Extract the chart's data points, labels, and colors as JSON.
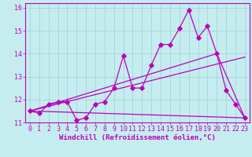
{
  "background_color": "#c5edef",
  "grid_color": "#a8d8dc",
  "line_color": "#bb00bb",
  "xlim": [
    -0.5,
    23.5
  ],
  "ylim": [
    11,
    16.2
  ],
  "xlabel": "Windchill (Refroidissement éolien,°C)",
  "xlabel_fontsize": 6.5,
  "xtick_labels": [
    "0",
    "1",
    "2",
    "3",
    "4",
    "5",
    "6",
    "7",
    "8",
    "9",
    "10",
    "11",
    "12",
    "13",
    "14",
    "15",
    "16",
    "17",
    "18",
    "19",
    "20",
    "21",
    "22",
    "23"
  ],
  "xtick_vals": [
    0,
    1,
    2,
    3,
    4,
    5,
    6,
    7,
    8,
    9,
    10,
    11,
    12,
    13,
    14,
    15,
    16,
    17,
    18,
    19,
    20,
    21,
    22,
    23
  ],
  "ytick_vals": [
    11,
    12,
    13,
    14,
    15,
    16
  ],
  "tick_fontsize": 6.0,
  "line1_x": [
    0,
    1,
    2,
    3,
    4,
    5,
    6,
    7,
    8,
    9,
    10,
    11,
    12,
    13,
    14,
    15,
    16,
    17,
    18,
    19,
    20,
    21,
    22,
    23
  ],
  "line1_y": [
    11.5,
    11.4,
    11.8,
    11.9,
    11.9,
    11.1,
    11.2,
    11.8,
    11.9,
    12.5,
    13.9,
    12.5,
    12.5,
    13.5,
    14.4,
    14.4,
    15.1,
    15.9,
    14.7,
    15.2,
    14.0,
    12.4,
    11.8,
    11.2
  ],
  "line2_x": [
    0,
    23
  ],
  "line2_y": [
    11.5,
    11.2
  ],
  "line3_x": [
    0,
    20,
    23
  ],
  "line3_y": [
    11.5,
    14.0,
    11.2
  ],
  "line4_x": [
    0,
    23
  ],
  "line4_y": [
    11.5,
    13.85
  ]
}
